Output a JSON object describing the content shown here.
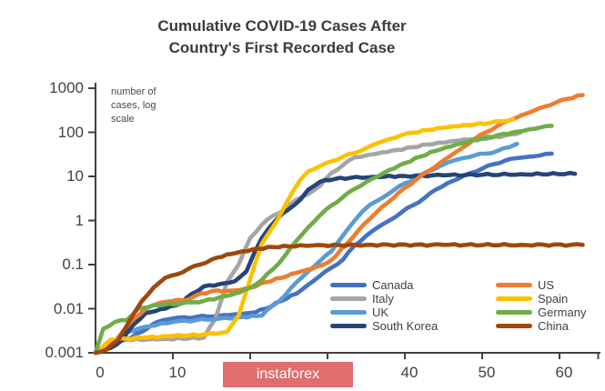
{
  "title": {
    "line1": "Cumulative COVID-19 Cases After",
    "line2": "Country's First Recorded Case"
  },
  "watermark": {
    "text": "instaforex",
    "bg_color": "#e06e6e",
    "text_color": "#ffffff"
  },
  "axis_color": "#404040",
  "chart_data": {
    "type": "line",
    "title": "Cumulative COVID-19 Cases After Country's First Recorded Case",
    "note": [
      "number of",
      "cases, log",
      "scale"
    ],
    "xlabel": "",
    "ylabel": "number of cases, log scale",
    "y_scale": "log",
    "ylim": [
      0.001,
      1000
    ],
    "xlim": [
      0,
      65
    ],
    "y_ticks": [
      1000,
      100,
      10,
      1,
      0.1,
      0.01,
      0.001
    ],
    "x_ticks": [
      0,
      10,
      20,
      30,
      40,
      50,
      60
    ],
    "grid": false,
    "legend_position": "inside-bottom-right-two-columns",
    "series": [
      {
        "name": "Canada",
        "color": "#4472C4",
        "points": [
          [
            0,
            0.001
          ],
          [
            2,
            0.0015
          ],
          [
            4,
            0.002
          ],
          [
            6,
            0.003
          ],
          [
            8,
            0.005
          ],
          [
            10,
            0.006
          ],
          [
            13,
            0.0065
          ],
          [
            16,
            0.007
          ],
          [
            18,
            0.0075
          ],
          [
            20,
            0.008
          ],
          [
            22,
            0.01
          ],
          [
            24,
            0.015
          ],
          [
            26,
            0.022
          ],
          [
            27.5,
            0.035
          ],
          [
            29,
            0.055
          ],
          [
            30.5,
            0.085
          ],
          [
            32,
            0.13
          ],
          [
            33.5,
            0.27
          ],
          [
            35,
            0.45
          ],
          [
            36.5,
            0.7
          ],
          [
            38,
            1.0
          ],
          [
            39.5,
            1.5
          ],
          [
            41,
            2.2
          ],
          [
            42.5,
            3.2
          ],
          [
            44,
            5
          ],
          [
            45.5,
            7
          ],
          [
            47,
            9
          ],
          [
            48.5,
            12
          ],
          [
            50,
            15
          ],
          [
            51.5,
            19
          ],
          [
            53,
            23
          ],
          [
            54.5,
            26
          ],
          [
            56,
            28
          ],
          [
            57.5,
            30
          ],
          [
            59,
            33
          ]
        ]
      },
      {
        "name": "Italy",
        "color": "#A5A5A5",
        "points": [
          [
            0,
            0.001
          ],
          [
            2,
            0.002
          ],
          [
            8,
            0.002
          ],
          [
            14,
            0.0022
          ],
          [
            15.5,
            0.006
          ],
          [
            17,
            0.04
          ],
          [
            18.5,
            0.1
          ],
          [
            20,
            0.4
          ],
          [
            21.5,
            0.8
          ],
          [
            23,
            1.3
          ],
          [
            24.5,
            1.8
          ],
          [
            26,
            3
          ],
          [
            27.5,
            4
          ],
          [
            29,
            6
          ],
          [
            30.5,
            12
          ],
          [
            32,
            18
          ],
          [
            33.5,
            27
          ],
          [
            35,
            30
          ],
          [
            37,
            35
          ],
          [
            39,
            40
          ],
          [
            41,
            46
          ],
          [
            43,
            53
          ],
          [
            45,
            58
          ],
          [
            47,
            65
          ],
          [
            49,
            70
          ],
          [
            51,
            74
          ],
          [
            53,
            85
          ],
          [
            55,
            100
          ]
        ]
      },
      {
        "name": "UK",
        "color": "#5B9BD5",
        "points": [
          [
            0,
            0.001
          ],
          [
            2,
            0.0015
          ],
          [
            4,
            0.003
          ],
          [
            7,
            0.004
          ],
          [
            10,
            0.005
          ],
          [
            13,
            0.0055
          ],
          [
            16,
            0.006
          ],
          [
            19,
            0.0065
          ],
          [
            21.5,
            0.007
          ],
          [
            23,
            0.012
          ],
          [
            24.5,
            0.02
          ],
          [
            26,
            0.04
          ],
          [
            27.5,
            0.07
          ],
          [
            29,
            0.12
          ],
          [
            30.5,
            0.2
          ],
          [
            31.5,
            0.35
          ],
          [
            32.5,
            0.6
          ],
          [
            33.5,
            1
          ],
          [
            34.5,
            1.6
          ],
          [
            35.5,
            2.3
          ],
          [
            37,
            3.2
          ],
          [
            38.5,
            4.8
          ],
          [
            40,
            7
          ],
          [
            41.5,
            9
          ],
          [
            43,
            13
          ],
          [
            44.5,
            17
          ],
          [
            46,
            22
          ],
          [
            47.5,
            26
          ],
          [
            49,
            30
          ],
          [
            50.5,
            33
          ],
          [
            52,
            38
          ],
          [
            53.5,
            46
          ],
          [
            54.5,
            55
          ]
        ]
      },
      {
        "name": "South Korea",
        "color": "#264478",
        "points": [
          [
            0,
            0.001
          ],
          [
            2,
            0.0013
          ],
          [
            3.5,
            0.002
          ],
          [
            5,
            0.0045
          ],
          [
            6.5,
            0.008
          ],
          [
            9,
            0.01
          ],
          [
            11,
            0.013
          ],
          [
            12.5,
            0.022
          ],
          [
            14,
            0.032
          ],
          [
            16,
            0.036
          ],
          [
            18,
            0.042
          ],
          [
            19.5,
            0.07
          ],
          [
            20.5,
            0.18
          ],
          [
            21.5,
            0.4
          ],
          [
            22.5,
            0.7
          ],
          [
            23.5,
            1.1
          ],
          [
            25,
            1.8
          ],
          [
            26.5,
            3
          ],
          [
            27.5,
            5
          ],
          [
            29,
            7.5
          ],
          [
            31,
            8.8
          ],
          [
            33,
            9.3
          ],
          [
            36,
            9.8
          ],
          [
            40,
            10.2
          ],
          [
            45,
            10.6
          ],
          [
            50,
            10.9
          ],
          [
            55,
            11.2
          ],
          [
            62,
            11.5
          ]
        ]
      },
      {
        "name": "US",
        "color": "#ED7D31",
        "points": [
          [
            0,
            0.001
          ],
          [
            2,
            0.0015
          ],
          [
            3.5,
            0.003
          ],
          [
            5,
            0.006
          ],
          [
            6.5,
            0.01
          ],
          [
            8,
            0.013
          ],
          [
            10,
            0.015
          ],
          [
            12,
            0.016
          ],
          [
            13,
            0.02
          ],
          [
            15,
            0.025
          ],
          [
            18,
            0.026
          ],
          [
            20,
            0.03
          ],
          [
            22,
            0.04
          ],
          [
            24,
            0.05
          ],
          [
            26,
            0.065
          ],
          [
            28,
            0.08
          ],
          [
            29.5,
            0.1
          ],
          [
            31,
            0.15
          ],
          [
            32.5,
            0.3
          ],
          [
            34,
            0.6
          ],
          [
            35.5,
            1.1
          ],
          [
            37,
            2
          ],
          [
            38.5,
            3.2
          ],
          [
            40,
            5.5
          ],
          [
            41.5,
            8.5
          ],
          [
            43,
            13
          ],
          [
            44.5,
            20
          ],
          [
            46,
            30
          ],
          [
            47.5,
            45
          ],
          [
            49,
            70
          ],
          [
            50.5,
            100
          ],
          [
            52,
            140
          ],
          [
            53.5,
            185
          ],
          [
            55,
            240
          ],
          [
            56.5,
            300
          ],
          [
            58,
            380
          ],
          [
            59.5,
            470
          ],
          [
            61,
            570
          ],
          [
            63,
            700
          ]
        ]
      },
      {
        "name": "Spain",
        "color": "#FFC000",
        "points": [
          [
            0,
            0.001
          ],
          [
            2,
            0.002
          ],
          [
            6,
            0.0022
          ],
          [
            10,
            0.0024
          ],
          [
            14,
            0.0026
          ],
          [
            17,
            0.003
          ],
          [
            18.5,
            0.007
          ],
          [
            19.5,
            0.025
          ],
          [
            20.5,
            0.09
          ],
          [
            21.5,
            0.3
          ],
          [
            22.5,
            0.55
          ],
          [
            23.5,
            1
          ],
          [
            24.5,
            2.2
          ],
          [
            25.5,
            4.5
          ],
          [
            26.5,
            8.5
          ],
          [
            27.5,
            13
          ],
          [
            29,
            17
          ],
          [
            30.5,
            22
          ],
          [
            32,
            28
          ],
          [
            33.5,
            34
          ],
          [
            35,
            44
          ],
          [
            36.5,
            57
          ],
          [
            38,
            70
          ],
          [
            39.5,
            85
          ],
          [
            41,
            98
          ],
          [
            43,
            112
          ],
          [
            45,
            126
          ],
          [
            47,
            138
          ],
          [
            49,
            150
          ],
          [
            51,
            163
          ],
          [
            52.5,
            178
          ],
          [
            54,
            195
          ]
        ]
      },
      {
        "name": "Germany",
        "color": "#70AD47",
        "points": [
          [
            0,
            0.001
          ],
          [
            1,
            0.0035
          ],
          [
            2.5,
            0.005
          ],
          [
            4,
            0.0055
          ],
          [
            5.5,
            0.01
          ],
          [
            8,
            0.012
          ],
          [
            11,
            0.013
          ],
          [
            14,
            0.015
          ],
          [
            16,
            0.018
          ],
          [
            18,
            0.022
          ],
          [
            20,
            0.03
          ],
          [
            21.5,
            0.045
          ],
          [
            23,
            0.08
          ],
          [
            24.5,
            0.16
          ],
          [
            26,
            0.35
          ],
          [
            27.5,
            0.7
          ],
          [
            29,
            1.3
          ],
          [
            30.5,
            2.2
          ],
          [
            32,
            3.4
          ],
          [
            33.5,
            5.2
          ],
          [
            35,
            7.5
          ],
          [
            36.5,
            10
          ],
          [
            38,
            14
          ],
          [
            40,
            20
          ],
          [
            42,
            28
          ],
          [
            44,
            38
          ],
          [
            46,
            48
          ],
          [
            48,
            60
          ],
          [
            50,
            72
          ],
          [
            52,
            86
          ],
          [
            54,
            100
          ],
          [
            56,
            116
          ],
          [
            57.5,
            128
          ],
          [
            59,
            140
          ]
        ]
      },
      {
        "name": "China",
        "color": "#9E480E",
        "points": [
          [
            0,
            0.001
          ],
          [
            1.5,
            0.0012
          ],
          [
            3,
            0.002
          ],
          [
            4,
            0.004
          ],
          [
            5,
            0.008
          ],
          [
            6,
            0.015
          ],
          [
            7.5,
            0.03
          ],
          [
            9,
            0.05
          ],
          [
            10.5,
            0.06
          ],
          [
            12,
            0.08
          ],
          [
            13.5,
            0.1
          ],
          [
            15,
            0.13
          ],
          [
            17,
            0.17
          ],
          [
            19,
            0.2
          ],
          [
            21,
            0.23
          ],
          [
            23,
            0.25
          ],
          [
            25,
            0.26
          ],
          [
            28,
            0.27
          ],
          [
            35,
            0.28
          ],
          [
            45,
            0.28
          ],
          [
            55,
            0.28
          ],
          [
            63,
            0.28
          ]
        ]
      }
    ],
    "legend_columns": [
      [
        "Canada",
        "Italy",
        "UK",
        "South Korea"
      ],
      [
        "US",
        "Spain",
        "Germany",
        "China"
      ]
    ]
  }
}
